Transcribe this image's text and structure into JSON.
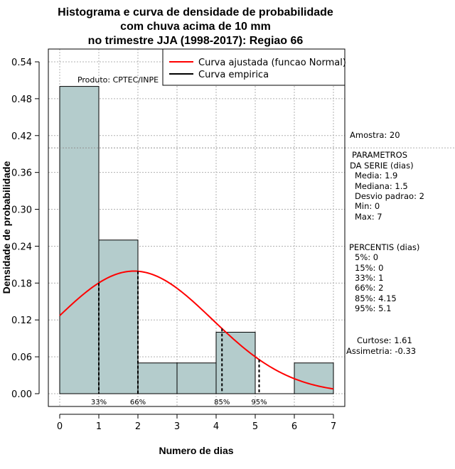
{
  "chart_data": {
    "type": "bar",
    "title_lines": [
      "Histograma e curva de densidade de probabilidade",
      "com chuva acima de 10 mm",
      "no trimestre JJA (1998-2017): Regiao 66"
    ],
    "xlabel": "Numero de dias",
    "ylabel": "Densidade de probabilidade",
    "xlim": [
      0,
      7
    ],
    "ylim": [
      0,
      0.54
    ],
    "x_ticks": [
      0,
      1,
      2,
      3,
      4,
      5,
      6,
      7
    ],
    "y_ticks": [
      "0.00",
      "0.06",
      "0.12",
      "0.18",
      "0.24",
      "0.30",
      "0.36",
      "0.42",
      "0.48",
      "0.54"
    ],
    "bins": [
      {
        "from": 0,
        "to": 1,
        "density": 0.5
      },
      {
        "from": 1,
        "to": 2,
        "density": 0.25
      },
      {
        "from": 2,
        "to": 3,
        "density": 0.05
      },
      {
        "from": 3,
        "to": 4,
        "density": 0.05
      },
      {
        "from": 4,
        "to": 5,
        "density": 0.1
      },
      {
        "from": 5,
        "to": 6,
        "density": 0.0
      },
      {
        "from": 6,
        "to": 7,
        "density": 0.05
      }
    ],
    "normal_fit": {
      "mean": 1.9,
      "sd": 2.0,
      "color": "#ff0000"
    },
    "reference_line_y": 0.4,
    "percentile_markers": [
      {
        "label": "33%",
        "x": 1.0
      },
      {
        "label": "66%",
        "x": 2.0
      },
      {
        "label": "85%",
        "x": 4.15
      },
      {
        "label": "95%",
        "x": 5.1
      }
    ],
    "legend": {
      "position": "top-right",
      "entries": [
        {
          "label": "Curva ajustada (funcao Normal)",
          "color": "#ff0000"
        },
        {
          "label": "Curva empirica",
          "color": "#000000"
        }
      ]
    },
    "bar_color": "#b4cccc",
    "product_label": "Produto: CPTEC/INPE"
  },
  "stats": {
    "sample": "Amostra: 20",
    "params_title_1": "PARAMETROS",
    "params_title_2": "DA SERIE (dias)",
    "params": [
      "Media: 1.9",
      "Mediana: 1.5",
      "Desvio padrao: 2",
      "Min: 0",
      "Max: 7"
    ],
    "percentiles_title": "PERCENTIS (dias)",
    "percentiles": [
      "5%: 0",
      "15%: 0",
      "33%: 1",
      "66%: 2",
      "85%: 4.15",
      "95%: 5.1"
    ],
    "kurtosis": "Curtose: 1.61",
    "skewness": "Assimetria: -0.33"
  }
}
